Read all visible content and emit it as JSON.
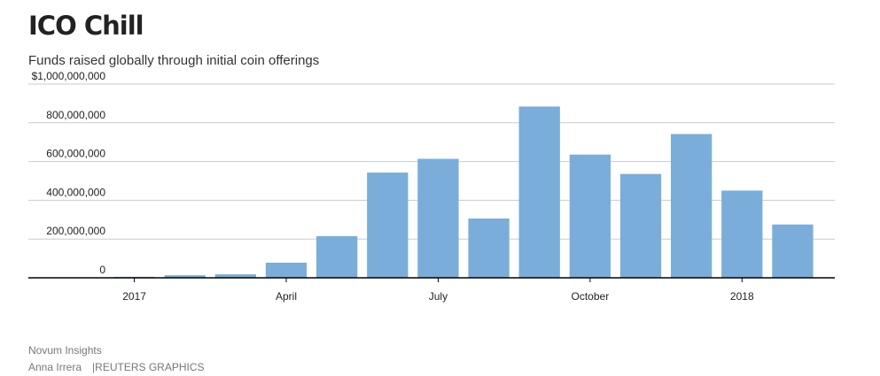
{
  "title": "ICO Chill",
  "subtitle": "Funds raised globally through initial coin offerings",
  "source": "Novum Insights",
  "credit": {
    "author": "Anna Irrera",
    "separator": "|",
    "publisher": "REUTERS GRAPHICS"
  },
  "colors": {
    "bar": "#7aadda",
    "grid": "#cccccc",
    "axis": "#000000"
  },
  "chart_data": {
    "type": "bar",
    "title": "ICO Chill",
    "subtitle": "Funds raised globally through initial coin offerings",
    "xlabel": "",
    "ylabel": "",
    "ylim": [
      0,
      1000000000
    ],
    "y_ticks": [
      0,
      200000000,
      400000000,
      600000000,
      800000000,
      1000000000
    ],
    "y_tick_labels": [
      "0",
      "200,000,000",
      "400,000,000",
      "600,000,000",
      "800,000,000",
      "$1,000,000,000"
    ],
    "categories": [
      "2017-01",
      "2017-02",
      "2017-03",
      "2017-04",
      "2017-05",
      "2017-06",
      "2017-07",
      "2017-08",
      "2017-09",
      "2017-10",
      "2017-11",
      "2017-12",
      "2018-01",
      "2018-02"
    ],
    "values": [
      5000000,
      13000000,
      18000000,
      78000000,
      215000000,
      543000000,
      614000000,
      306000000,
      884000000,
      636000000,
      536000000,
      742000000,
      450000000,
      275000000
    ],
    "x_tick_labels": [
      {
        "category": "2017-01",
        "label": "2017"
      },
      {
        "category": "2017-04",
        "label": "April"
      },
      {
        "category": "2017-07",
        "label": "July"
      },
      {
        "category": "2017-10",
        "label": "October"
      },
      {
        "category": "2018-01",
        "label": "2018"
      }
    ],
    "grid": true,
    "legend": "none"
  }
}
